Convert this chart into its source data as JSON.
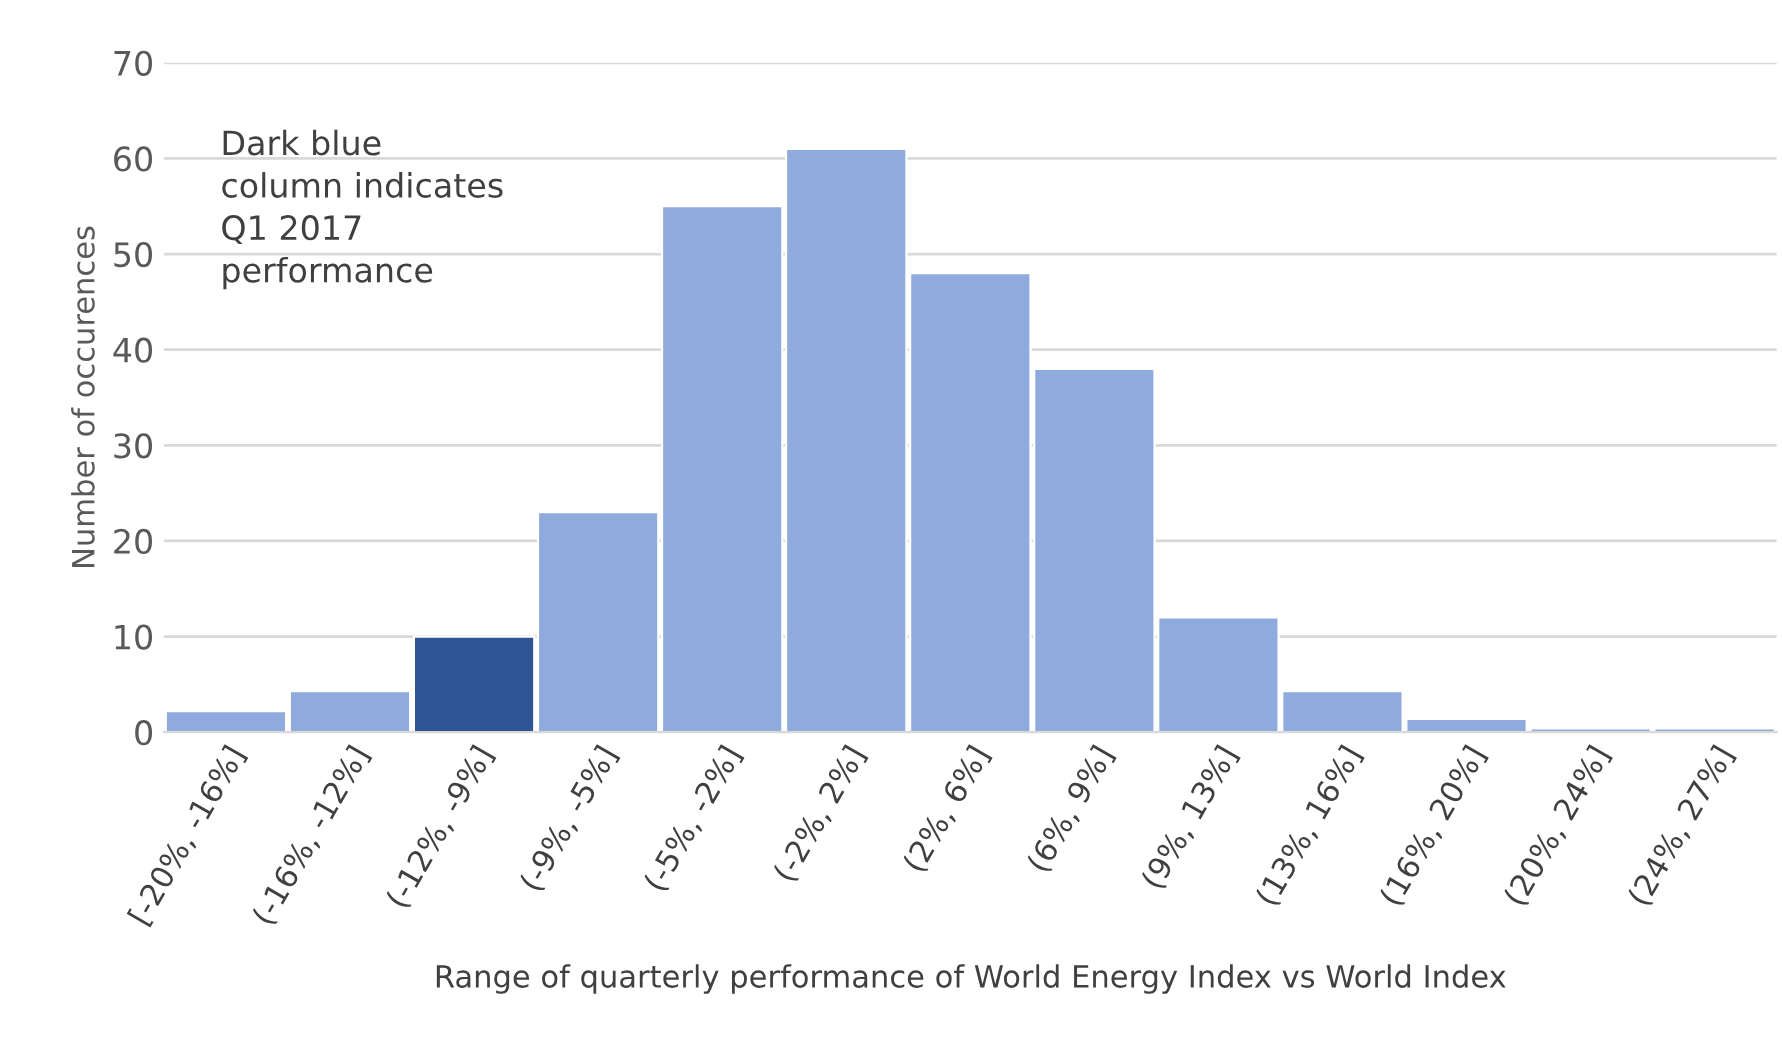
{
  "chart_data": {
    "type": "bar",
    "categories": [
      "[-20%, -16%]",
      "(-16%, -12%]",
      "(-12%, -9%]",
      "(-9%, -5%]",
      "(-5%, -2%]",
      "(-2%, 2%]",
      "(2%, 6%]",
      "(6%, 9%]",
      "(9%, 13%]",
      "(13%, 16%]",
      "(16%, 20%]",
      "(20%, 24%]",
      "(24%, 27%]"
    ],
    "values": [
      2.2,
      4.3,
      10,
      23,
      55,
      61,
      48,
      38,
      12,
      4.3,
      1.4,
      0.4,
      0.4
    ],
    "colors": [
      "#8faadc",
      "#8faadc",
      "#2f5597",
      "#8faadc",
      "#8faadc",
      "#8faadc",
      "#8faadc",
      "#8faadc",
      "#8faadc",
      "#8faadc",
      "#8faadc",
      "#8faadc",
      "#8faadc"
    ],
    "ylim": [
      0,
      70
    ],
    "yticks": [
      0,
      10,
      20,
      30,
      40,
      50,
      60,
      70
    ],
    "grid": "y",
    "xlabel": "Range of quarterly performance of World Energy Index vs World Index",
    "ylabel": "Number of occurences",
    "annotations": [
      "Dark blue\ncolumn indicates\nQ1 2017\nperformance"
    ]
  }
}
